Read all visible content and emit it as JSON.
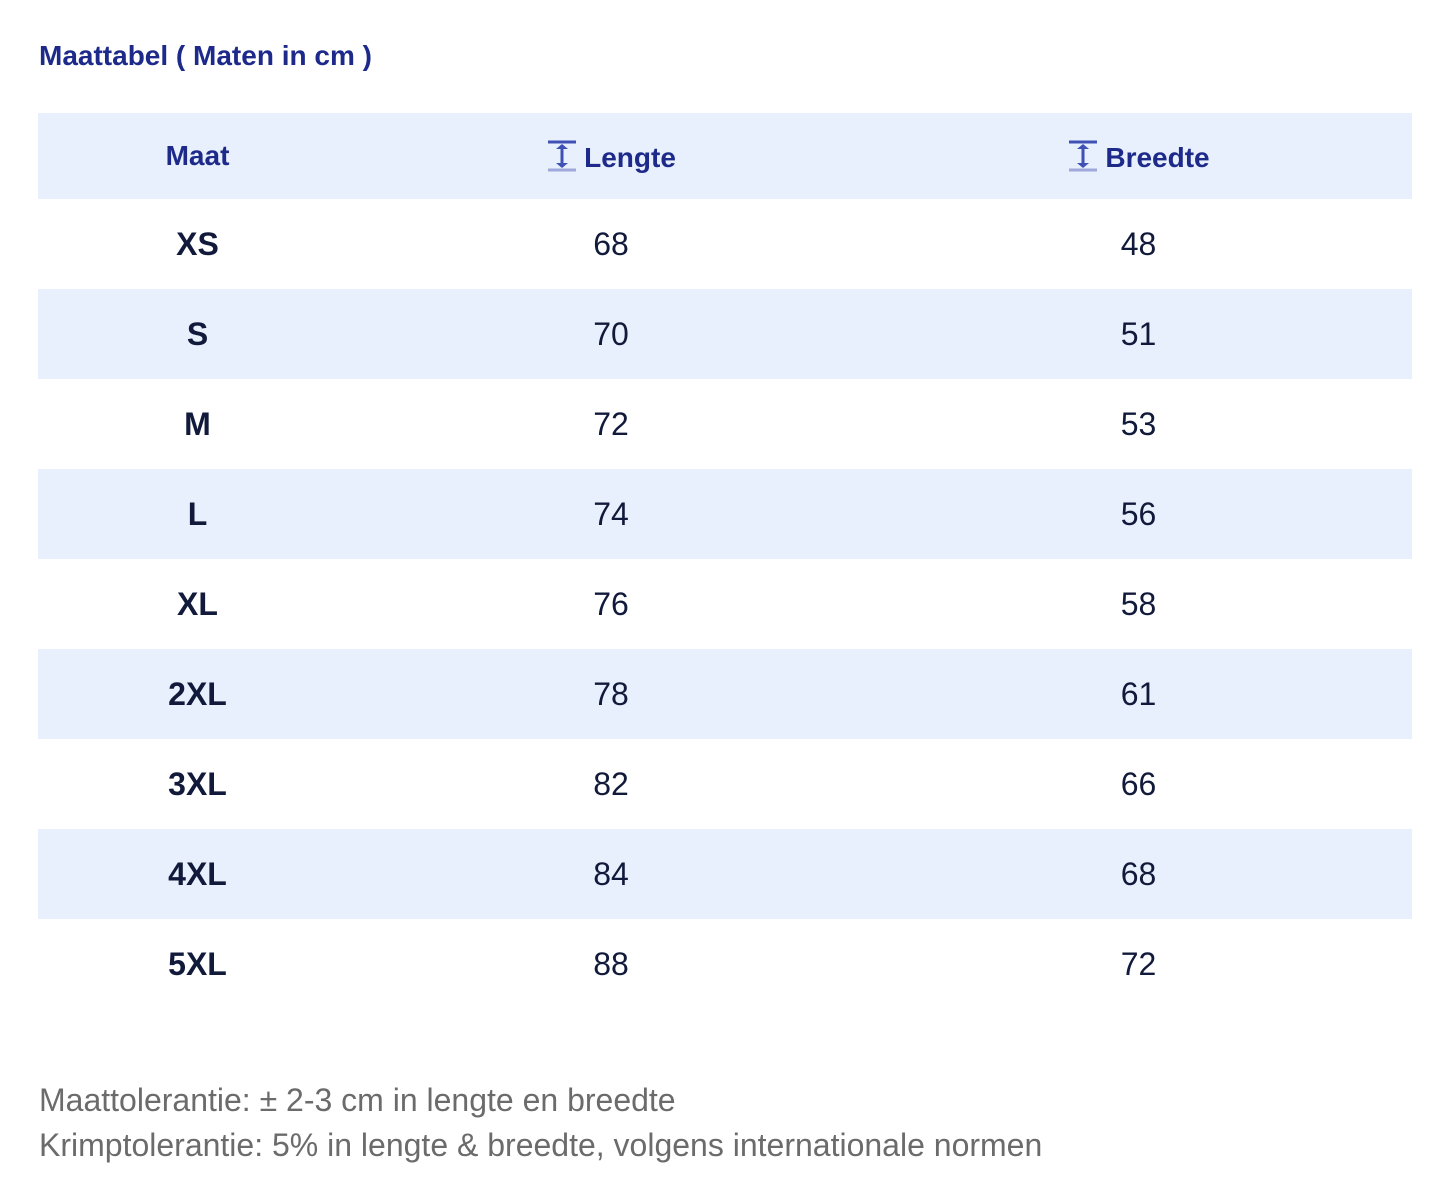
{
  "header": {
    "title": "Maattabel ( Maten in cm )"
  },
  "table": {
    "columns": [
      "Maat",
      "Lengte",
      "Breedte"
    ],
    "rows": [
      [
        "XS",
        68,
        48
      ],
      [
        "S",
        70,
        51
      ],
      [
        "M",
        72,
        53
      ],
      [
        "L",
        74,
        56
      ],
      [
        "XL",
        76,
        58
      ],
      [
        "2XL",
        78,
        61
      ],
      [
        "3XL",
        82,
        66
      ],
      [
        "4XL",
        84,
        68
      ],
      [
        "5XL",
        88,
        72
      ]
    ]
  },
  "notes": [
    "Maattolerantie: ± 2-3 cm in lengte en breedte",
    "Krimptolerantie: 5% in lengte & breedte, volgens internationale normen"
  ]
}
